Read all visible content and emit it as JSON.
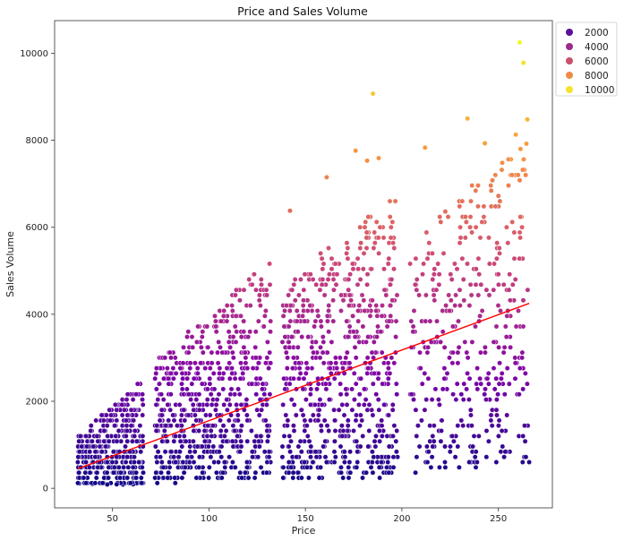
{
  "chart_data": {
    "type": "scatter",
    "title": "Price and Sales Volume",
    "xlabel": "Price",
    "ylabel": "Sales Volume",
    "xlim": [
      20,
      278
    ],
    "ylim": [
      -450,
      10750
    ],
    "xticks": [
      50,
      100,
      150,
      200,
      250
    ],
    "yticks": [
      0,
      2000,
      4000,
      6000,
      8000,
      10000
    ],
    "grid": false,
    "legend_position": "outside-top-right",
    "legend": [
      {
        "label": "2000",
        "color": "#5b0f9a"
      },
      {
        "label": "4000",
        "color": "#9c2a8a"
      },
      {
        "label": "6000",
        "color": "#cc4f6c"
      },
      {
        "label": "8000",
        "color": "#ef8a46"
      },
      {
        "label": "10000",
        "color": "#f6e12b"
      }
    ],
    "colormap": "plasma",
    "color_range": [
      0,
      10300
    ],
    "trendline": {
      "x": [
        32,
        266
      ],
      "y": [
        450,
        4250
      ],
      "color": "#ff0000"
    },
    "price_clusters": [
      {
        "x_min": 32,
        "x_max": 66,
        "y_low_slope": 0.2,
        "y_high_slope": 38,
        "n": 380
      },
      {
        "x_min": 72,
        "x_max": 132,
        "y_low_slope": 2,
        "y_high_slope": 40,
        "n": 650
      },
      {
        "x_min": 138,
        "x_max": 198,
        "y_low_slope": 1.5,
        "y_high_slope": 34,
        "n": 650
      },
      {
        "x_min": 204,
        "x_max": 266,
        "y_low_slope": 2,
        "y_high_slope": 30,
        "n": 380
      }
    ],
    "outliers": [
      {
        "x": 261,
        "y": 10250
      },
      {
        "x": 263,
        "y": 9780
      },
      {
        "x": 185,
        "y": 9070
      },
      {
        "x": 234,
        "y": 8500
      },
      {
        "x": 265,
        "y": 8480
      },
      {
        "x": 259,
        "y": 8130
      },
      {
        "x": 243,
        "y": 7930
      },
      {
        "x": 212,
        "y": 7830
      },
      {
        "x": 176,
        "y": 7760
      },
      {
        "x": 188,
        "y": 7590
      },
      {
        "x": 182,
        "y": 7530
      },
      {
        "x": 252,
        "y": 7480
      },
      {
        "x": 161,
        "y": 7150
      },
      {
        "x": 142,
        "y": 6380
      }
    ]
  }
}
